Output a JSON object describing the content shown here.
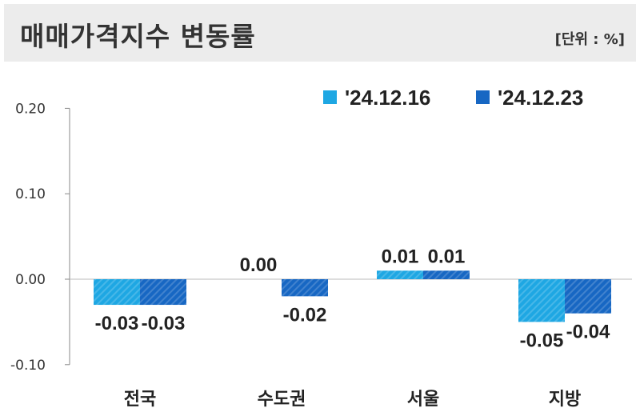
{
  "header": {
    "title": "매매가격지수 변동률",
    "unit": "[단위 : %]"
  },
  "colors": {
    "series1": "#1ea7e3",
    "series2": "#1767c3",
    "axis": "#888888",
    "text": "#222222",
    "header_bg": "#ececec"
  },
  "chart_data": {
    "type": "bar",
    "categories": [
      "전국",
      "수도권",
      "서울",
      "지방"
    ],
    "series": [
      {
        "name": "'24.12.16",
        "values": [
          -0.03,
          0.0,
          0.01,
          -0.05
        ],
        "labels": [
          "-0.03",
          "0.00",
          "0.01",
          "-0.05"
        ],
        "color": "#1ea7e3"
      },
      {
        "name": "'24.12.23",
        "values": [
          -0.03,
          -0.02,
          0.01,
          -0.04
        ],
        "labels": [
          "-0.03",
          "-0.02",
          "0.01",
          "-0.04"
        ],
        "color": "#1767c3"
      }
    ],
    "yticks": [
      "0.20",
      "0.10",
      "0.00",
      "-0.10"
    ],
    "ytick_values": [
      0.2,
      0.1,
      0.0,
      -0.1
    ],
    "ylim": [
      -0.1,
      0.2
    ],
    "legend_position": "top-right",
    "grid": false
  }
}
